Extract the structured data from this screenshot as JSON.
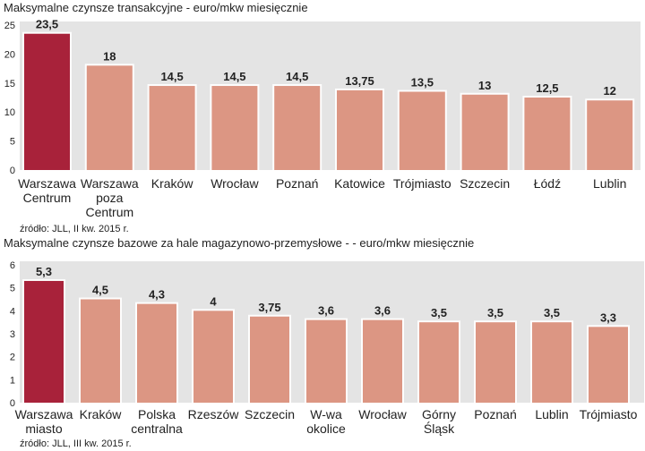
{
  "colors": {
    "highlight": "#a8223a",
    "bar": "#dc9683",
    "plot_background": "#e4e4e4",
    "text": "#222222"
  },
  "chart_data": [
    {
      "type": "bar",
      "title": "Maksymalne czynsze transakcyjne - euro/mkw miesięcznie",
      "source": "źródło: JLL, II kw. 2015 r.",
      "categories": [
        [
          "Warszawa",
          "Centrum"
        ],
        [
          "Warszawa",
          "poza",
          "Centrum"
        ],
        [
          "Kraków"
        ],
        [
          "Wrocław"
        ],
        [
          "Poznań"
        ],
        [
          "Katowice"
        ],
        [
          "Trójmiasto"
        ],
        [
          "Szczecin"
        ],
        [
          "Łódź"
        ],
        [
          "Lublin"
        ]
      ],
      "values": [
        23.5,
        18,
        14.5,
        14.5,
        14.5,
        13.75,
        13.5,
        13,
        12.5,
        12
      ],
      "value_labels": [
        "23,5",
        "18",
        "14,5",
        "14,5",
        "14,5",
        "13,75",
        "13,5",
        "13",
        "12,5",
        "12"
      ],
      "highlight_index": 0,
      "ylim": [
        0,
        25
      ],
      "yticks": [
        0,
        5,
        10,
        15,
        20,
        25
      ],
      "grid": false
    },
    {
      "type": "bar",
      "title": "Maksymalne czynsze bazowe za hale magazynowo-przemysłowe - - euro/mkw miesięcznie",
      "source": "źródło: JLL, III kw. 2015 r.",
      "categories": [
        [
          "Warszawa",
          "miasto"
        ],
        [
          "Kraków"
        ],
        [
          "Polska",
          "centralna"
        ],
        [
          "Rzeszów"
        ],
        [
          "Szczecin"
        ],
        [
          "W-wa",
          "okolice"
        ],
        [
          "Wrocław"
        ],
        [
          "Górny",
          "Śląsk"
        ],
        [
          "Poznań"
        ],
        [
          "Lublin"
        ],
        [
          "Trójmiasto"
        ]
      ],
      "values": [
        5.3,
        4.5,
        4.3,
        4,
        3.75,
        3.6,
        3.6,
        3.5,
        3.5,
        3.5,
        3.3
      ],
      "value_labels": [
        "5,3",
        "4,5",
        "4,3",
        "4",
        "3,75",
        "3,6",
        "3,6",
        "3,5",
        "3,5",
        "3,5",
        "3,3"
      ],
      "highlight_index": 0,
      "ylim": [
        0,
        6
      ],
      "yticks": [
        0,
        1,
        2,
        3,
        4,
        5,
        6
      ],
      "grid": false
    }
  ]
}
